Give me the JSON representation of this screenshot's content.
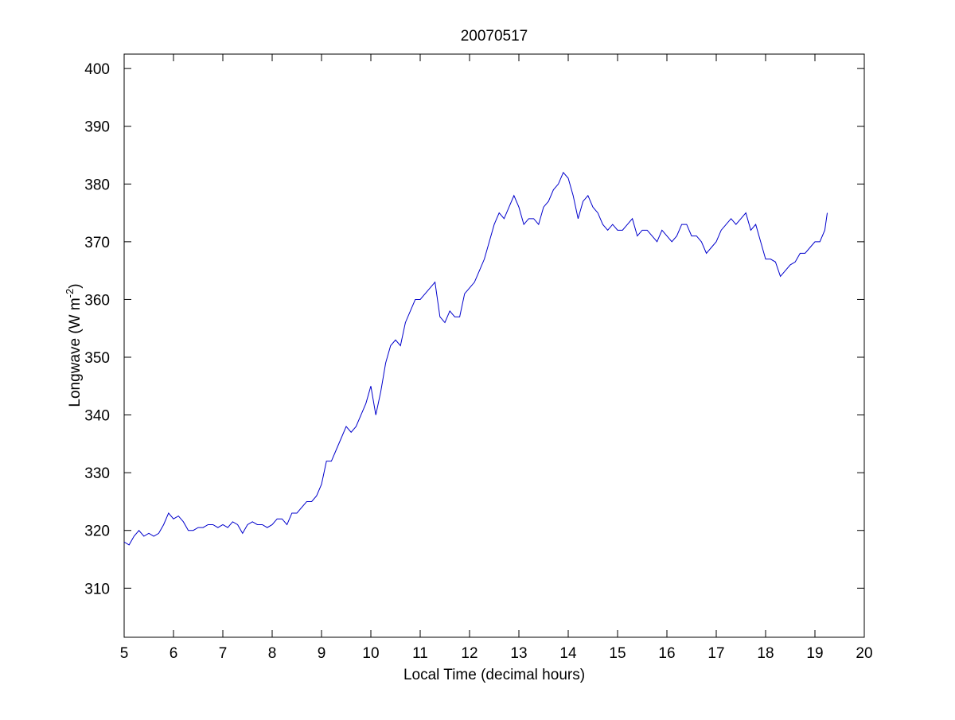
{
  "chart_data": {
    "type": "line",
    "title": "20070517",
    "xlabel": "Local Time (decimal hours)",
    "ylabel": [
      "Longwave (W m",
      "-2",
      ")"
    ],
    "x": [
      5.0,
      5.1,
      5.2,
      5.3,
      5.4,
      5.5,
      5.6,
      5.7,
      5.8,
      5.9,
      6.0,
      6.1,
      6.2,
      6.3,
      6.4,
      6.5,
      6.6,
      6.7,
      6.8,
      6.9,
      7.0,
      7.1,
      7.2,
      7.3,
      7.4,
      7.5,
      7.6,
      7.7,
      7.8,
      7.9,
      8.0,
      8.1,
      8.2,
      8.3,
      8.4,
      8.5,
      8.6,
      8.7,
      8.8,
      8.9,
      9.0,
      9.1,
      9.2,
      9.3,
      9.4,
      9.5,
      9.6,
      9.7,
      9.8,
      9.9,
      10.0,
      10.1,
      10.2,
      10.3,
      10.4,
      10.5,
      10.6,
      10.7,
      10.8,
      10.9,
      11.0,
      11.1,
      11.2,
      11.3,
      11.4,
      11.5,
      11.6,
      11.7,
      11.8,
      11.9,
      12.0,
      12.1,
      12.2,
      12.3,
      12.4,
      12.5,
      12.6,
      12.7,
      12.8,
      12.9,
      13.0,
      13.1,
      13.2,
      13.3,
      13.4,
      13.5,
      13.6,
      13.7,
      13.8,
      13.9,
      14.0,
      14.1,
      14.2,
      14.3,
      14.4,
      14.5,
      14.6,
      14.7,
      14.8,
      14.9,
      15.0,
      15.1,
      15.2,
      15.3,
      15.4,
      15.5,
      15.6,
      15.7,
      15.8,
      15.9,
      16.0,
      16.1,
      16.2,
      16.3,
      16.4,
      16.5,
      16.6,
      16.7,
      16.8,
      16.9,
      17.0,
      17.1,
      17.2,
      17.3,
      17.4,
      17.5,
      17.6,
      17.7,
      17.8,
      17.9,
      18.0,
      18.1,
      18.2,
      18.3,
      18.4,
      18.5,
      18.6,
      18.7,
      18.8,
      18.9,
      19.0,
      19.1,
      19.2,
      19.25
    ],
    "values": [
      318,
      317.5,
      319,
      320,
      319,
      319.5,
      319,
      319.5,
      321,
      323,
      322,
      322.5,
      321.5,
      320,
      320,
      320.5,
      320.5,
      321,
      321,
      320.5,
      321,
      320.5,
      321.5,
      321,
      319.5,
      321,
      321.5,
      321,
      321,
      320.5,
      321,
      322,
      322,
      321,
      323,
      323,
      324,
      325,
      325,
      326,
      328,
      332,
      332,
      334,
      336,
      338,
      337,
      338,
      340,
      342,
      345,
      340,
      344,
      349,
      352,
      353,
      352,
      356,
      358,
      360,
      360,
      361,
      362,
      363,
      357,
      356,
      358,
      357,
      357,
      361,
      362,
      363,
      365,
      367,
      370,
      373,
      375,
      374,
      376,
      378,
      376,
      373,
      374,
      374,
      373,
      376,
      377,
      379,
      380,
      382,
      381,
      378,
      374,
      377,
      378,
      376,
      375,
      373,
      372,
      373,
      372,
      372,
      373,
      374,
      371,
      372,
      372,
      371,
      370,
      372,
      371,
      370,
      371,
      373,
      373,
      371,
      371,
      370,
      368,
      369,
      370,
      372,
      373,
      374,
      373,
      374,
      375,
      372,
      373,
      370,
      367,
      367,
      366.5,
      364,
      365,
      366,
      366.5,
      368,
      368,
      369,
      370,
      370,
      372,
      375
    ],
    "color": "#0000cc",
    "xlim": [
      5,
      20
    ],
    "xticks": [
      5,
      6,
      7,
      8,
      9,
      10,
      11,
      12,
      13,
      14,
      15,
      16,
      17,
      18,
      19,
      20
    ],
    "ylim": [
      301.5,
      402.5
    ],
    "yticks": [
      310,
      320,
      330,
      340,
      350,
      360,
      370,
      380,
      390,
      400
    ]
  }
}
